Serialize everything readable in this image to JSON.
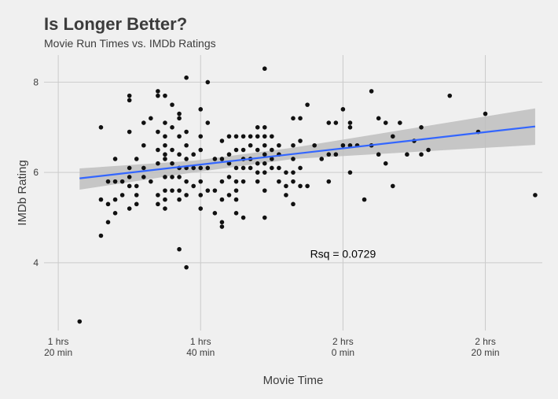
{
  "chart_data": {
    "type": "scatter",
    "title": "Is Longer Better?",
    "subtitle": "Movie Run Times vs. IMDb Ratings",
    "xlabel": "Movie Time",
    "ylabel": "IMDb Rating",
    "xlim": [
      78,
      148
    ],
    "ylim": [
      2.5,
      8.6
    ],
    "x_ticks": [
      {
        "value": 80,
        "line1": "1 hrs",
        "line2": "20 min"
      },
      {
        "value": 100,
        "line1": "1 hrs",
        "line2": "40 min"
      },
      {
        "value": 120,
        "line1": "2 hrs",
        "line2": "0 min"
      },
      {
        "value": 140,
        "line1": "2 hrs",
        "line2": "20 min"
      }
    ],
    "y_ticks": [
      4,
      6,
      8
    ],
    "grid": true,
    "annotation": {
      "text": "Rsq = 0.0729",
      "x": 120,
      "y": 4.2
    },
    "trend": {
      "x0": 83,
      "y0": 5.87,
      "x1": 147,
      "y1": 7.02
    },
    "band": {
      "x": [
        83,
        99,
        113,
        147
      ],
      "lower": [
        5.62,
        6.0,
        6.3,
        6.61
      ],
      "upper": [
        6.09,
        6.26,
        6.55,
        7.42
      ]
    },
    "colors": {
      "points": "#111111",
      "trend": "#3366ff",
      "band": "#bebebe",
      "grid": "#cbcbcb",
      "background": "#f0f0f0"
    },
    "points": [
      [
        83,
        2.7
      ],
      [
        86,
        7.0
      ],
      [
        86,
        5.4
      ],
      [
        86,
        4.6
      ],
      [
        87,
        5.8
      ],
      [
        87,
        5.3
      ],
      [
        87,
        4.9
      ],
      [
        88,
        6.3
      ],
      [
        88,
        5.8
      ],
      [
        88,
        5.4
      ],
      [
        88,
        5.1
      ],
      [
        89,
        5.8
      ],
      [
        89,
        5.5
      ],
      [
        90,
        7.7
      ],
      [
        90,
        7.6
      ],
      [
        90,
        6.9
      ],
      [
        90,
        6.1
      ],
      [
        90,
        5.9
      ],
      [
        90,
        5.7
      ],
      [
        90,
        5.2
      ],
      [
        91,
        6.3
      ],
      [
        91,
        5.7
      ],
      [
        91,
        5.5
      ],
      [
        91,
        5.3
      ],
      [
        92,
        7.1
      ],
      [
        92,
        6.6
      ],
      [
        92,
        6.1
      ],
      [
        92,
        5.9
      ],
      [
        93,
        7.2
      ],
      [
        93,
        5.8
      ],
      [
        94,
        7.8
      ],
      [
        94,
        7.7
      ],
      [
        94,
        6.9
      ],
      [
        94,
        6.5
      ],
      [
        94,
        6.2
      ],
      [
        94,
        5.5
      ],
      [
        94,
        5.3
      ],
      [
        95,
        7.7
      ],
      [
        95,
        7.1
      ],
      [
        95,
        6.8
      ],
      [
        95,
        6.6
      ],
      [
        95,
        6.4
      ],
      [
        95,
        6.3
      ],
      [
        95,
        5.9
      ],
      [
        95,
        5.6
      ],
      [
        95,
        5.4
      ],
      [
        95,
        5.2
      ],
      [
        96,
        7.5
      ],
      [
        96,
        7.0
      ],
      [
        96,
        6.5
      ],
      [
        96,
        6.2
      ],
      [
        96,
        5.9
      ],
      [
        96,
        5.6
      ],
      [
        97,
        7.3
      ],
      [
        97,
        7.2
      ],
      [
        97,
        6.8
      ],
      [
        97,
        6.4
      ],
      [
        97,
        6.1
      ],
      [
        97,
        5.9
      ],
      [
        97,
        5.6
      ],
      [
        97,
        5.4
      ],
      [
        97,
        4.3
      ],
      [
        98,
        8.1
      ],
      [
        98,
        6.9
      ],
      [
        98,
        6.6
      ],
      [
        98,
        6.3
      ],
      [
        98,
        6.1
      ],
      [
        98,
        5.8
      ],
      [
        98,
        5.5
      ],
      [
        98,
        3.9
      ],
      [
        99,
        6.4
      ],
      [
        99,
        6.1
      ],
      [
        99,
        5.7
      ],
      [
        100,
        7.4
      ],
      [
        100,
        6.8
      ],
      [
        100,
        6.5
      ],
      [
        100,
        6.1
      ],
      [
        100,
        5.8
      ],
      [
        100,
        5.5
      ],
      [
        100,
        5.2
      ],
      [
        101,
        8.0
      ],
      [
        101,
        7.1
      ],
      [
        101,
        6.1
      ],
      [
        101,
        5.6
      ],
      [
        102,
        6.3
      ],
      [
        102,
        5.6
      ],
      [
        102,
        5.1
      ],
      [
        103,
        6.7
      ],
      [
        103,
        6.3
      ],
      [
        103,
        5.8
      ],
      [
        103,
        5.4
      ],
      [
        103,
        4.9
      ],
      [
        103,
        4.8
      ],
      [
        104,
        6.8
      ],
      [
        104,
        6.4
      ],
      [
        104,
        6.2
      ],
      [
        104,
        5.9
      ],
      [
        104,
        5.5
      ],
      [
        105,
        6.8
      ],
      [
        105,
        6.5
      ],
      [
        105,
        6.1
      ],
      [
        105,
        5.8
      ],
      [
        105,
        5.6
      ],
      [
        105,
        5.4
      ],
      [
        105,
        5.1
      ],
      [
        106,
        6.8
      ],
      [
        106,
        6.5
      ],
      [
        106,
        6.3
      ],
      [
        106,
        6.1
      ],
      [
        106,
        5.8
      ],
      [
        106,
        5.0
      ],
      [
        107,
        6.8
      ],
      [
        107,
        6.6
      ],
      [
        107,
        6.3
      ],
      [
        107,
        6.1
      ],
      [
        108,
        7.0
      ],
      [
        108,
        6.8
      ],
      [
        108,
        6.5
      ],
      [
        108,
        6.2
      ],
      [
        108,
        6.0
      ],
      [
        108,
        5.8
      ],
      [
        109,
        8.3
      ],
      [
        109,
        7.0
      ],
      [
        109,
        6.8
      ],
      [
        109,
        6.6
      ],
      [
        109,
        6.4
      ],
      [
        109,
        6.2
      ],
      [
        109,
        6.0
      ],
      [
        109,
        5.6
      ],
      [
        109,
        5.0
      ],
      [
        110,
        6.8
      ],
      [
        110,
        6.5
      ],
      [
        110,
        6.3
      ],
      [
        110,
        6.1
      ],
      [
        111,
        6.6
      ],
      [
        111,
        6.4
      ],
      [
        111,
        6.1
      ],
      [
        111,
        5.8
      ],
      [
        112,
        6.0
      ],
      [
        112,
        5.7
      ],
      [
        112,
        5.5
      ],
      [
        113,
        7.2
      ],
      [
        113,
        6.6
      ],
      [
        113,
        6.3
      ],
      [
        113,
        6.0
      ],
      [
        113,
        5.8
      ],
      [
        113,
        5.3
      ],
      [
        114,
        7.2
      ],
      [
        114,
        6.7
      ],
      [
        114,
        6.1
      ],
      [
        114,
        5.7
      ],
      [
        115,
        7.5
      ],
      [
        115,
        5.7
      ],
      [
        116,
        6.6
      ],
      [
        117,
        6.3
      ],
      [
        118,
        7.1
      ],
      [
        118,
        6.4
      ],
      [
        118,
        5.8
      ],
      [
        119,
        7.1
      ],
      [
        119,
        6.4
      ],
      [
        120,
        7.4
      ],
      [
        120,
        6.6
      ],
      [
        121,
        7.1
      ],
      [
        121,
        7.0
      ],
      [
        121,
        6.6
      ],
      [
        121,
        6.0
      ],
      [
        122,
        6.6
      ],
      [
        123,
        5.4
      ],
      [
        124,
        7.8
      ],
      [
        124,
        6.6
      ],
      [
        125,
        7.2
      ],
      [
        125,
        6.4
      ],
      [
        126,
        7.1
      ],
      [
        126,
        6.2
      ],
      [
        127,
        6.8
      ],
      [
        127,
        5.7
      ],
      [
        128,
        7.1
      ],
      [
        129,
        6.4
      ],
      [
        130,
        6.7
      ],
      [
        131,
        7.0
      ],
      [
        131,
        6.4
      ],
      [
        132,
        6.5
      ],
      [
        135,
        7.7
      ],
      [
        139,
        6.9
      ],
      [
        140,
        7.3
      ],
      [
        147,
        5.5
      ]
    ]
  }
}
